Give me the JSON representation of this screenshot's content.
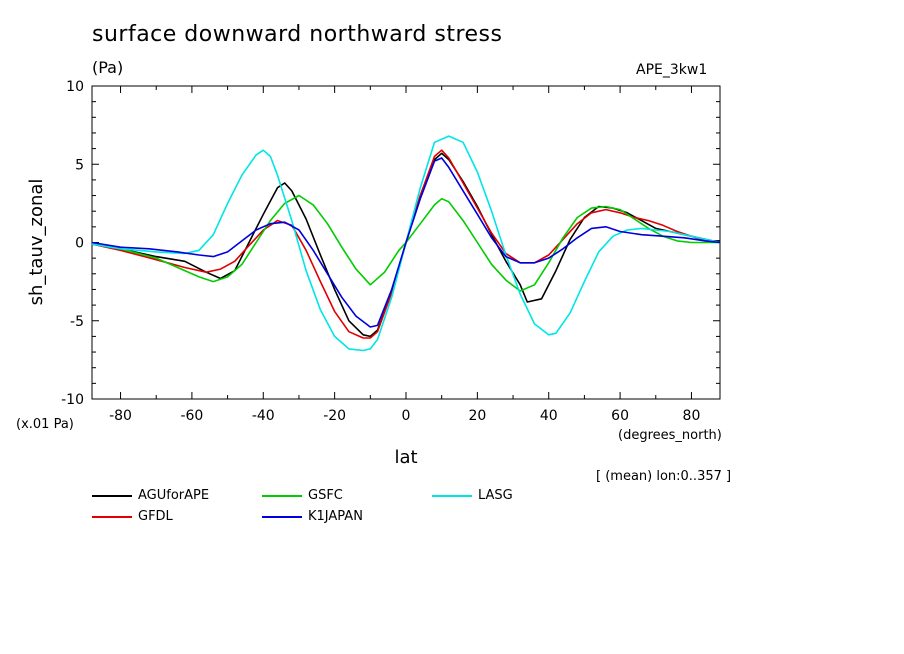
{
  "header": {
    "title": "surface downward northward stress",
    "unit": "(Pa)",
    "run": "APE_3kw1",
    "note": "[ (mean) lon:0..357 ]"
  },
  "chart_data": {
    "type": "line",
    "title": "surface downward northward stress",
    "xlabel": "lat",
    "ylabel": "sh_tauv_zonal",
    "x_units": "(degrees_north)",
    "y_scale_label": "(x.01 Pa)",
    "xlim": [
      -88,
      88
    ],
    "ylim": [
      -10,
      10
    ],
    "x_ticks": [
      -80,
      -60,
      -40,
      -20,
      0,
      20,
      40,
      60,
      80
    ],
    "x_tick_labels": [
      "-80",
      "-60",
      "-40",
      "-20",
      "0",
      "20",
      "40",
      "60",
      "80"
    ],
    "y_ticks": [
      -10,
      -5,
      0,
      5,
      10
    ],
    "y_tick_labels": [
      "-10",
      "-5",
      "0",
      "5",
      "10"
    ],
    "grid": false,
    "legend_position": "bottom",
    "series": [
      {
        "name": "AGUforAPE",
        "color": "#000000",
        "x": [
          -88,
          -80,
          -70,
          -62,
          -56,
          -52,
          -48,
          -44,
          -40,
          -36,
          -34,
          -32,
          -28,
          -24,
          -20,
          -16,
          -12,
          -10,
          -8,
          -4,
          0,
          4,
          8,
          10,
          12,
          16,
          20,
          24,
          28,
          32,
          34,
          38,
          42,
          46,
          50,
          54,
          58,
          62,
          66,
          70,
          74,
          78,
          82,
          86,
          88
        ],
        "y": [
          -0.1,
          -0.4,
          -0.9,
          -1.2,
          -1.9,
          -2.3,
          -1.8,
          0,
          1.8,
          3.5,
          3.8,
          3.3,
          1.5,
          -0.8,
          -3,
          -5,
          -5.9,
          -6,
          -5.6,
          -3.2,
          0,
          3,
          5.3,
          5.7,
          5.3,
          3.9,
          2.3,
          0.5,
          -1.2,
          -2.7,
          -3.8,
          -3.6,
          -1.8,
          0.2,
          1.6,
          2.3,
          2.2,
          1.9,
          1.4,
          0.9,
          0.7,
          0.5,
          0.3,
          0.1,
          0.1
        ]
      },
      {
        "name": "GFDL",
        "color": "#e00000",
        "x": [
          -88,
          -80,
          -70,
          -62,
          -56,
          -52,
          -48,
          -44,
          -40,
          -36,
          -32,
          -28,
          -24,
          -20,
          -16,
          -12,
          -10,
          -8,
          -4,
          0,
          4,
          8,
          10,
          12,
          16,
          20,
          24,
          28,
          32,
          36,
          40,
          44,
          48,
          52,
          56,
          60,
          64,
          68,
          72,
          76,
          80,
          84,
          88
        ],
        "y": [
          -0.1,
          -0.5,
          -1.1,
          -1.6,
          -1.9,
          -1.7,
          -1.2,
          -0.2,
          0.8,
          1.4,
          1.1,
          -0.5,
          -2.5,
          -4.4,
          -5.7,
          -6.1,
          -6.1,
          -5.7,
          -3.2,
          0,
          3,
          5.5,
          5.9,
          5.4,
          3.8,
          2.2,
          0.6,
          -0.7,
          -1.3,
          -1.3,
          -0.8,
          0.2,
          1.2,
          1.9,
          2.1,
          1.9,
          1.6,
          1.4,
          1.1,
          0.7,
          0.4,
          0.1,
          0
        ]
      },
      {
        "name": "GSFC",
        "color": "#00cc00",
        "x": [
          -88,
          -80,
          -70,
          -64,
          -58,
          -54,
          -50,
          -46,
          -42,
          -38,
          -34,
          -30,
          -26,
          -22,
          -18,
          -14,
          -10,
          -6,
          -2,
          0,
          4,
          8,
          10,
          12,
          16,
          20,
          24,
          28,
          32,
          36,
          40,
          44,
          48,
          52,
          56,
          60,
          64,
          68,
          72,
          76,
          80,
          84,
          88
        ],
        "y": [
          -0.1,
          -0.4,
          -1,
          -1.6,
          -2.2,
          -2.5,
          -2.2,
          -1.4,
          0,
          1.4,
          2.5,
          3,
          2.4,
          1.2,
          -0.3,
          -1.7,
          -2.7,
          -1.9,
          -0.5,
          0,
          1.2,
          2.4,
          2.8,
          2.6,
          1.4,
          0,
          -1.4,
          -2.4,
          -3.1,
          -2.7,
          -1.3,
          0.3,
          1.6,
          2.2,
          2.3,
          2.1,
          1.5,
          0.9,
          0.4,
          0.1,
          0,
          0,
          0
        ]
      },
      {
        "name": "LASG",
        "color": "#00e5e5",
        "x": [
          -88,
          -80,
          -70,
          -62,
          -58,
          -54,
          -50,
          -46,
          -42,
          -40,
          -38,
          -36,
          -32,
          -28,
          -24,
          -20,
          -16,
          -12,
          -10,
          -8,
          -4,
          0,
          4,
          8,
          12,
          16,
          20,
          24,
          28,
          32,
          36,
          40,
          42,
          46,
          50,
          54,
          58,
          62,
          66,
          70,
          74,
          78,
          82,
          86,
          88
        ],
        "y": [
          -0.1,
          -0.4,
          -0.6,
          -0.7,
          -0.5,
          0.5,
          2.5,
          4.3,
          5.6,
          5.9,
          5.5,
          4.3,
          1.4,
          -1.8,
          -4.3,
          -6,
          -6.8,
          -6.9,
          -6.8,
          -6.2,
          -3.5,
          0,
          3.5,
          6.4,
          6.8,
          6.4,
          4.5,
          2,
          -0.8,
          -3.3,
          -5.2,
          -5.9,
          -5.8,
          -4.5,
          -2.5,
          -0.6,
          0.4,
          0.8,
          0.9,
          0.8,
          0.7,
          0.5,
          0.3,
          0.1,
          0
        ]
      },
      {
        "name": "K1JAPAN",
        "color": "#0000dd",
        "x": [
          -88,
          -80,
          -72,
          -64,
          -58,
          -54,
          -50,
          -46,
          -42,
          -38,
          -34,
          -30,
          -26,
          -22,
          -18,
          -14,
          -10,
          -8,
          -4,
          0,
          4,
          8,
          10,
          12,
          16,
          20,
          24,
          28,
          32,
          36,
          40,
          44,
          48,
          52,
          56,
          60,
          66,
          72,
          78,
          84,
          88
        ],
        "y": [
          0,
          -0.3,
          -0.4,
          -0.6,
          -0.8,
          -0.9,
          -0.6,
          0.1,
          0.8,
          1.2,
          1.3,
          0.8,
          -0.5,
          -2,
          -3.5,
          -4.7,
          -5.4,
          -5.3,
          -3,
          0,
          2.8,
          5.2,
          5.4,
          4.8,
          3.3,
          1.8,
          0.3,
          -0.9,
          -1.3,
          -1.3,
          -1,
          -0.4,
          0.3,
          0.9,
          1,
          0.7,
          0.5,
          0.4,
          0.3,
          0.1,
          0
        ]
      }
    ]
  }
}
